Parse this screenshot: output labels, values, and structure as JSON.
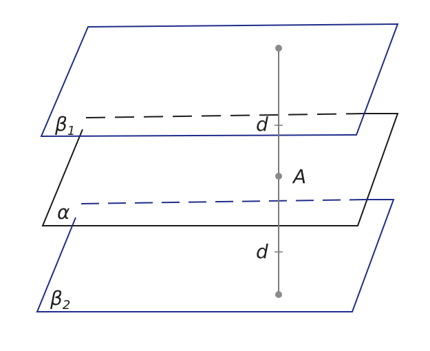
{
  "labels": {
    "beta1": "β",
    "beta1_sub": "1",
    "alpha": "α",
    "beta2": "β",
    "beta2_sub": "2",
    "point_a": "A",
    "d_upper": "d",
    "d_lower": "d"
  },
  "colors": {
    "beta_planes": "#1f2d8a",
    "alpha_plane": "#1a1a1a",
    "segment": "#7a7a7a",
    "points": "#8a8a8a"
  }
}
